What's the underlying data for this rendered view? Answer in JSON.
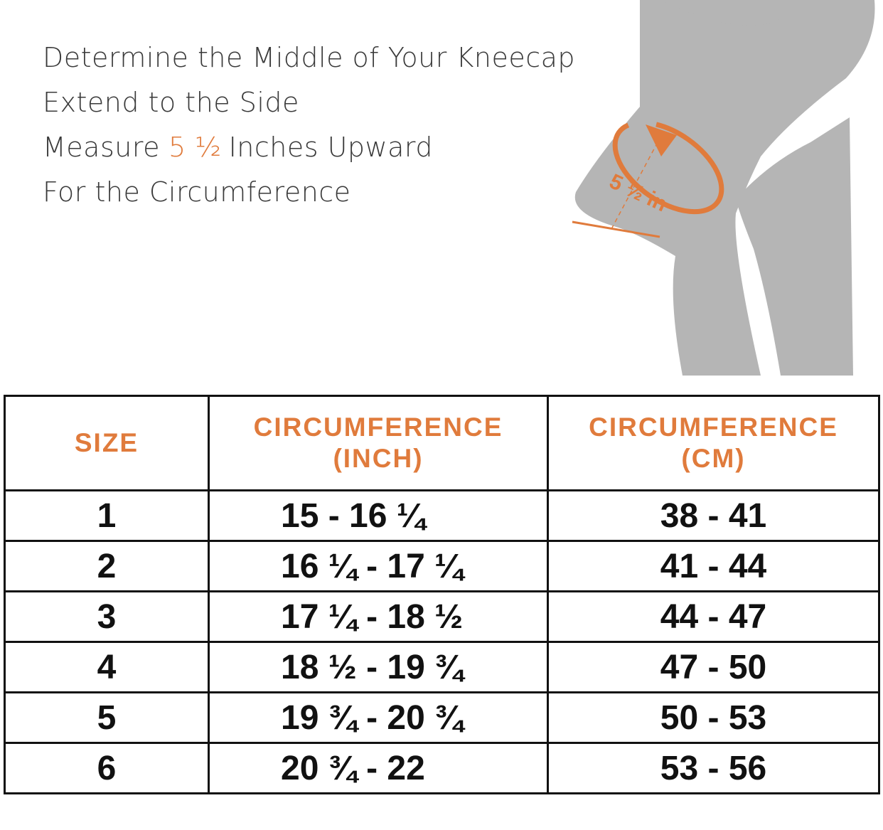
{
  "instructions": {
    "line1": "Determine the Middle of Your Kneecap",
    "line2": "Extend to the Side",
    "line3": {
      "before": "Measure",
      "highlight": "5 ½",
      "after": "Inches Upward"
    },
    "line4": "For the Circumference"
  },
  "figure": {
    "label": "5 ½ in"
  },
  "table": {
    "headers": [
      [
        "SIZE"
      ],
      [
        "CIRCUMFERENCE",
        "(INCH)"
      ],
      [
        "CIRCUMFERENCE",
        "(CM)"
      ]
    ],
    "rows": [
      [
        "1",
        "15 - 16 ¼",
        "38 - 41"
      ],
      [
        "2",
        "16 ¼ - 17 ¼",
        "41 - 44"
      ],
      [
        "3",
        "17 ¼ - 18 ½",
        "44 - 47"
      ],
      [
        "4",
        "18 ½ - 19 ¾",
        "47 - 50"
      ],
      [
        "5",
        "19 ¾ - 20 ¾",
        "50 - 53"
      ],
      [
        "6",
        "20 ¾ - 22",
        "53 - 56"
      ]
    ]
  }
}
